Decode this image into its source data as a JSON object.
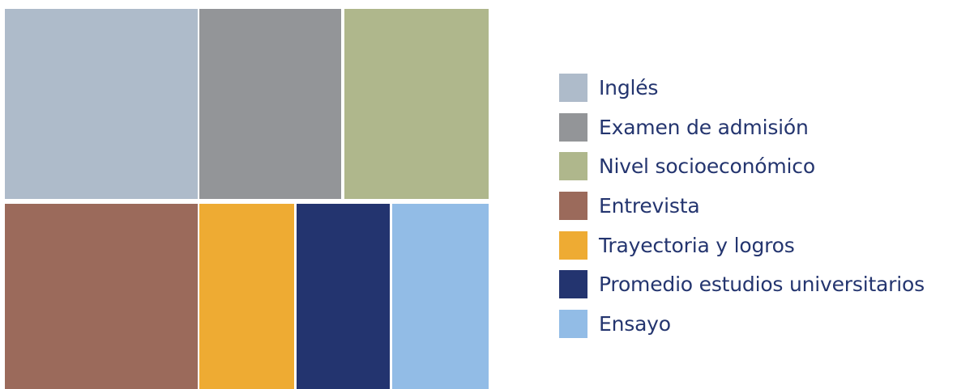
{
  "chart_data": {
    "type": "treemap",
    "title": "",
    "legend_position": "right",
    "series": [
      {
        "name": "Inglés",
        "color": "#aebbca"
      },
      {
        "name": "Examen de admisión",
        "color": "#939598"
      },
      {
        "name": "Nivel socioeconómico",
        "color": "#afb78c"
      },
      {
        "name": "Entrevista",
        "color": "#9b6a5b"
      },
      {
        "name": "Trayectoria y logros",
        "color": "#eeab33"
      },
      {
        "name": "Promedio estudios universitarios",
        "color": "#23346f"
      },
      {
        "name": "Ensayo",
        "color": "#92bce6"
      }
    ]
  }
}
